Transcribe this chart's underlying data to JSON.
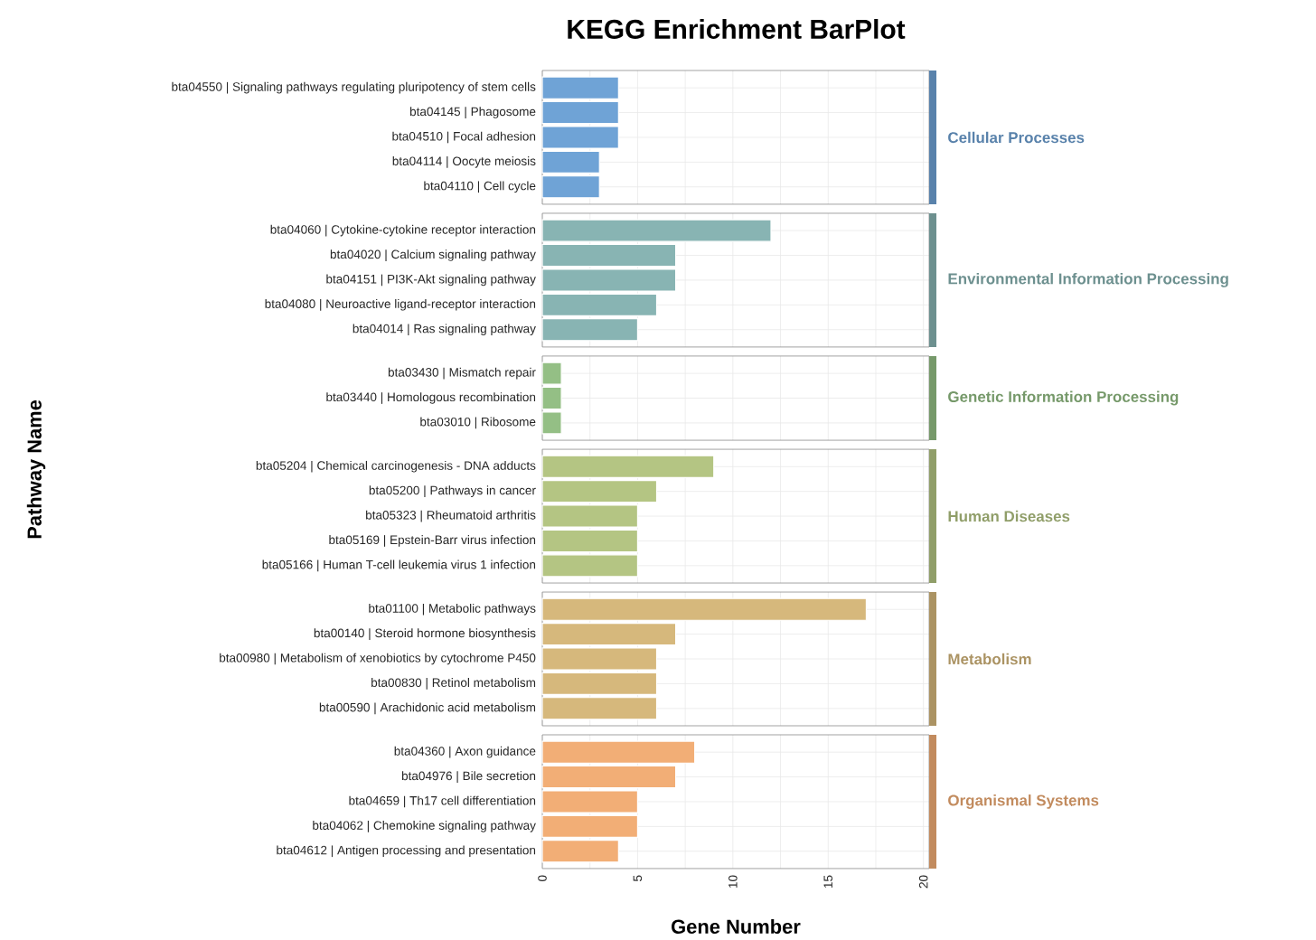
{
  "chart_data": [
    {
      "type": "bar",
      "orientation": "horizontal",
      "title": "KEGG Enrichment BarPlot",
      "annotations": [
        "Cellular Processes"
      ],
      "categories": [
        "bta04550 | Signaling pathways regulating pluripotency of stem cells",
        "bta04145 | Phagosome",
        "bta04510 | Focal adhesion",
        "bta04114 | Oocyte meiosis",
        "bta04110 | Cell cycle"
      ],
      "values": [
        4,
        4,
        4,
        3,
        3
      ],
      "color": "#6fa3d6",
      "xlim": [
        0,
        20.3
      ],
      "xticks": [
        0,
        5,
        10,
        15,
        20
      ],
      "grid": true,
      "tick_labels": "y"
    },
    {
      "type": "bar",
      "orientation": "horizontal",
      "annotations": [
        "Environmental Information Processing"
      ],
      "categories": [
        "bta04060 | Cytokine-cytokine receptor interaction",
        "bta04020 | Calcium signaling pathway",
        "bta04151 | PI3K-Akt signaling pathway",
        "bta04080 | Neuroactive ligand-receptor interaction",
        "bta04014 | Ras signaling pathway"
      ],
      "values": [
        12,
        7,
        7,
        6,
        5
      ],
      "color": "#88b4b3",
      "xlim": [
        0,
        20.3
      ],
      "xticks": [
        0,
        5,
        10,
        15,
        20
      ],
      "grid": true,
      "tick_labels": "y"
    },
    {
      "type": "bar",
      "orientation": "horizontal",
      "annotations": [
        "Genetic Information Processing"
      ],
      "categories": [
        "bta03430 | Mismatch repair",
        "bta03440 | Homologous recombination",
        "bta03010 | Ribosome"
      ],
      "values": [
        1,
        1,
        1
      ],
      "color": "#94bf85",
      "xlim": [
        0,
        20.3
      ],
      "xticks": [
        0,
        5,
        10,
        15,
        20
      ],
      "grid": true,
      "tick_labels": "y"
    },
    {
      "type": "bar",
      "orientation": "horizontal",
      "ylabel": "Pathway Name",
      "annotations": [
        "Human Diseases"
      ],
      "categories": [
        "bta05204 | Chemical carcinogenesis - DNA adducts",
        "bta05200 | Pathways in cancer",
        "bta05323 | Rheumatoid arthritis",
        "bta05169 | Epstein-Barr virus infection",
        "bta05166 | Human T-cell leukemia virus 1 infection"
      ],
      "values": [
        9,
        6,
        5,
        5,
        5
      ],
      "color": "#b4c583",
      "xlim": [
        0,
        20.3
      ],
      "xticks": [
        0,
        5,
        10,
        15,
        20
      ],
      "grid": true,
      "tick_labels": "y"
    },
    {
      "type": "bar",
      "orientation": "horizontal",
      "annotations": [
        "Metabolism"
      ],
      "categories": [
        "bta01100 | Metabolic pathways",
        "bta00140 | Steroid hormone biosynthesis",
        "bta00980 | Metabolism of xenobiotics by cytochrome P450",
        "bta00830 | Retinol metabolism",
        "bta00590 | Arachidonic acid metabolism"
      ],
      "values": [
        17,
        7,
        6,
        6,
        6
      ],
      "color": "#d6b87c",
      "xlim": [
        0,
        20.3
      ],
      "xticks": [
        0,
        5,
        10,
        15,
        20
      ],
      "grid": true,
      "tick_labels": "y"
    },
    {
      "type": "bar",
      "orientation": "horizontal",
      "annotations": [
        "Organismal Systems"
      ],
      "xlabel": "Gene Number",
      "categories": [
        "bta04360 | Axon guidance",
        "bta04976 | Bile secretion",
        "bta04659 | Th17 cell differentiation",
        "bta04062 | Chemokine signaling pathway",
        "bta04612 | Antigen processing and presentation"
      ],
      "values": [
        8,
        7,
        5,
        5,
        4
      ],
      "color": "#f2ae76",
      "xlim": [
        0,
        20.3
      ],
      "xticks": [
        0,
        5,
        10,
        15,
        20
      ],
      "grid": true
    }
  ]
}
